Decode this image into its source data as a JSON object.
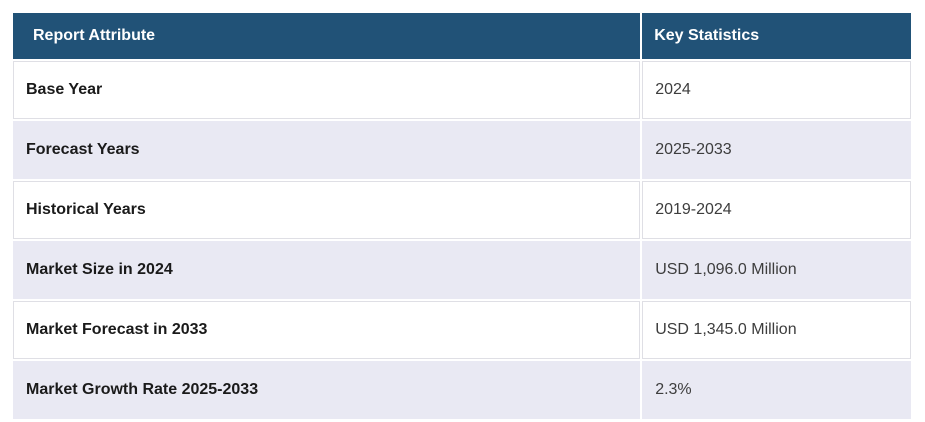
{
  "table": {
    "columns": [
      {
        "label": "Report Attribute"
      },
      {
        "label": "Key Statistics"
      }
    ],
    "rows": [
      {
        "attribute": "Base Year",
        "value": "2024"
      },
      {
        "attribute": "Forecast Years",
        "value": "2025-2033"
      },
      {
        "attribute": "Historical Years",
        "value": "2019-2024"
      },
      {
        "attribute": "Market Size in 2024",
        "value": "USD 1,096.0 Million"
      },
      {
        "attribute": "Market Forecast in 2033",
        "value": "USD 1,345.0 Million"
      },
      {
        "attribute": "Market Growth Rate 2025-2033",
        "value": "2.3%"
      }
    ],
    "colors": {
      "header_bg": "#215277",
      "header_text": "#ffffff",
      "row_bg": "#ffffff",
      "row_alt_bg": "#e9e9f3",
      "attribute_text": "#1a1a1a",
      "value_text": "#3d3d3d",
      "border": "#dfdfe5"
    }
  }
}
